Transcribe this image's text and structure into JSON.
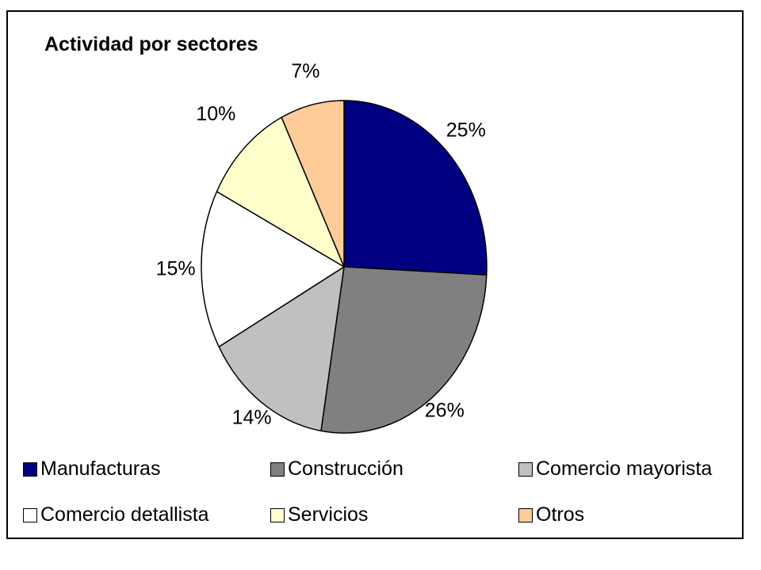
{
  "chart_data": {
    "type": "pie",
    "title": "Actividad por sectores",
    "slices": [
      {
        "name": "Manufacturas",
        "value": 25,
        "label": "25%",
        "color": "#000080"
      },
      {
        "name": "Construcción",
        "value": 26,
        "label": "26%",
        "color": "#808080"
      },
      {
        "name": "Comercio mayorista",
        "value": 14,
        "label": "14%",
        "color": "#C0C0C0"
      },
      {
        "name": "Comercio detallista",
        "value": 15,
        "label": "15%",
        "color": "#FFFFFF"
      },
      {
        "name": "Servicios",
        "value": 10,
        "label": "10%",
        "color": "#FFFFCC"
      },
      {
        "name": "Otros",
        "value": 7,
        "label": "7%",
        "color": "#FFCC99"
      }
    ],
    "start": "12 o'clock",
    "direction": "clockwise",
    "legend_position": "bottom"
  }
}
